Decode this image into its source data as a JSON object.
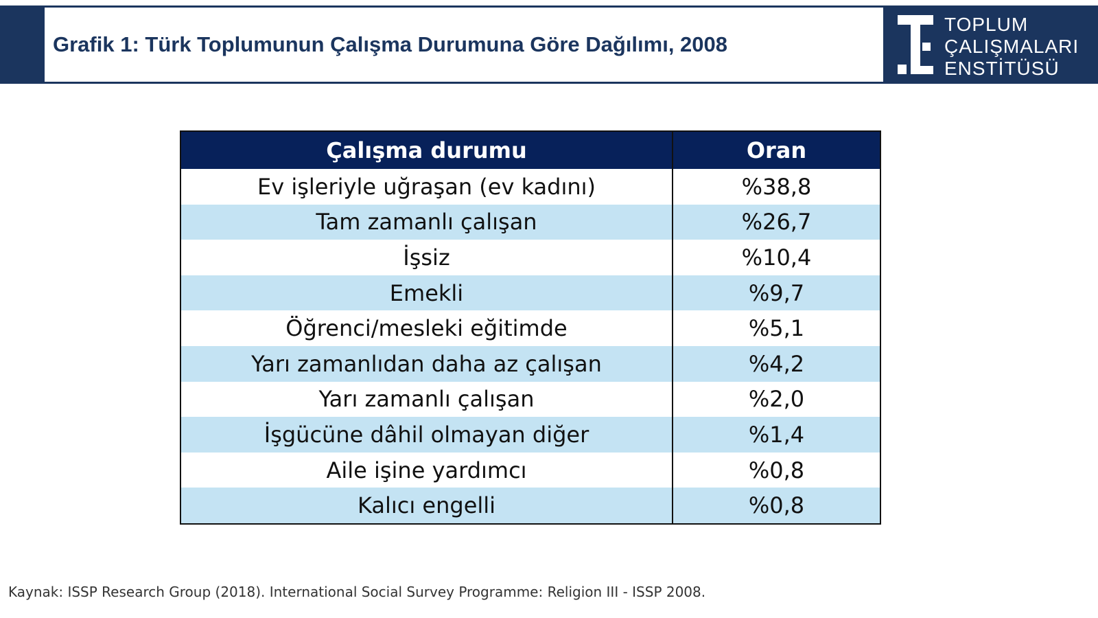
{
  "header": {
    "title": "Grafik 1: Türk Toplumunun Çalışma Durumuna Göre Dağılımı, 2008",
    "logo": [
      "TOPLUM",
      "ÇALIŞMALARI",
      "ENSTİTÜSÜ"
    ]
  },
  "table": {
    "columns": [
      "Çalışma durumu",
      "Oran"
    ],
    "rows": [
      [
        "Ev işleriyle uğraşan (ev kadını)",
        "%38,8"
      ],
      [
        "Tam zamanlı çalışan",
        "%26,7"
      ],
      [
        "İşsiz",
        "%10,4"
      ],
      [
        "Emekli",
        "%9,7"
      ],
      [
        "Öğrenci/mesleki eğitimde",
        "%5,1"
      ],
      [
        "Yarı zamanlıdan daha az çalışan",
        "%4,2"
      ],
      [
        "Yarı zamanlı çalışan",
        "%2,0"
      ],
      [
        "İşgücüne dâhil olmayan diğer",
        "%1,4"
      ],
      [
        "Aile işine yardımcı",
        "%0,8"
      ],
      [
        "Kalıcı engelli",
        "%0,8"
      ]
    ]
  },
  "source": "Kaynak: ISSP Research Group (2018). International Social Survey Programme: Religion III - ISSP 2008."
}
